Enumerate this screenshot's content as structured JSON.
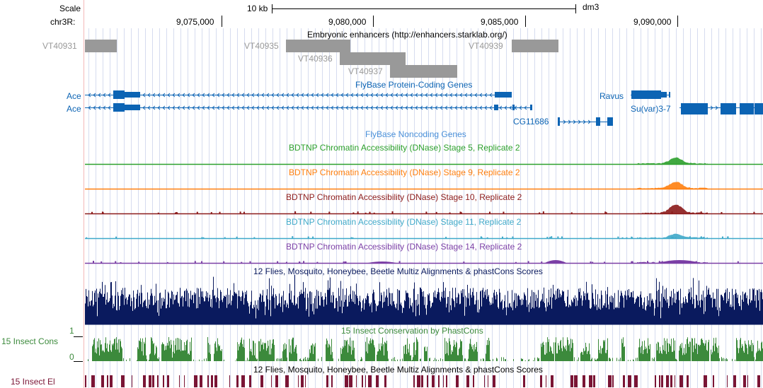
{
  "scale_label": "Scale",
  "scale_value": "10 kb",
  "assembly": "dm3",
  "chrom_label": "chr3R:",
  "ruler_ticks": [
    "9,075,000",
    "9,080,000",
    "9,085,000",
    "9,090,000"
  ],
  "enhancers": {
    "title": "Embryonic enhancers (http://enhancers.starklab.org/)",
    "items": [
      "VT40931",
      "VT40935",
      "VT40936",
      "VT40937",
      "VT40939"
    ]
  },
  "genes": {
    "title": "FlyBase Protein-Coding Genes",
    "labels": [
      "Ace",
      "Ace",
      "Ravus",
      "Su(var)3-7",
      "CG11686"
    ]
  },
  "noncoding": {
    "title": "FlyBase Noncoding Genes"
  },
  "dnase": [
    {
      "title": "BDTNP Chromatin Accessibility (DNase) Stage 5, Replicate 2",
      "color": "#2ca02c"
    },
    {
      "title": "BDTNP Chromatin Accessibility (DNase) Stage 9, Replicate 2",
      "color": "#ff7f0e"
    },
    {
      "title": "BDTNP Chromatin Accessibility (DNase) Stage 10, Replicate 2",
      "color": "#8b1a1a"
    },
    {
      "title": "BDTNP Chromatin Accessibility (DNase) Stage 11, Replicate 2",
      "color": "#3fa9c9"
    },
    {
      "title": "BDTNP Chromatin Accessibility (DNase) Stage 14, Replicate 2",
      "color": "#7b3fa6"
    }
  ],
  "multiz": {
    "title": "12 Flies, Mosquito, Honeybee, Beetle Multiz Alignments & phastCons Scores",
    "color": "#0a1a5e"
  },
  "phastcons": {
    "title": "15 Insect Conservation by PhastCons",
    "side_label": "15 Insect Cons",
    "scale_max": "1",
    "scale_min": "0",
    "color": "#3c8a3c"
  },
  "elements": {
    "title": "12 Flies, Mosquito, Honeybee, Beetle Multiz Alignments & phastCons Scores",
    "side_label": "15 Insect El",
    "color": "#7a1535"
  },
  "colors": {
    "enhancer": "#999999",
    "gene": "#0c64b4",
    "gene_label": "#0c64b4",
    "enhancer_label": "#999999"
  }
}
